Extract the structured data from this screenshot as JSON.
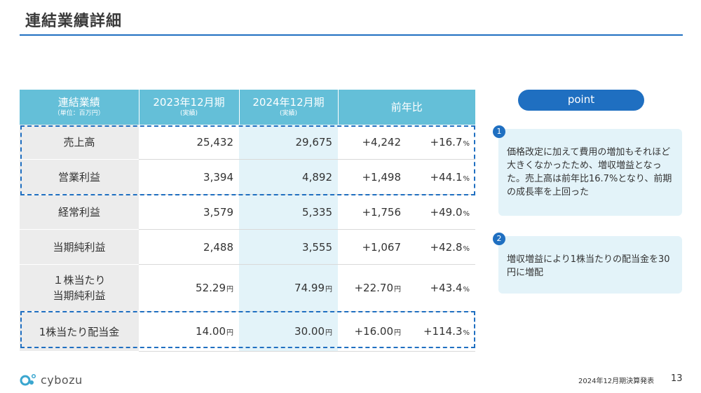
{
  "title": "連結業績詳細",
  "table": {
    "headers": [
      {
        "main": "連結業績",
        "sub": "（単位：百万円）"
      },
      {
        "main": "2023年12月期",
        "sub": "(実績)"
      },
      {
        "main": "2024年12月期",
        "sub": "(実績)"
      },
      {
        "main": "前年比",
        "sub": ""
      }
    ],
    "rows": [
      {
        "label": "売上高",
        "y2023": "25,432",
        "y2024": "29,675",
        "diff": "+4,242",
        "pct": "+16.7",
        "unit": ""
      },
      {
        "label": "営業利益",
        "y2023": "3,394",
        "y2024": "4,892",
        "diff": "+1,498",
        "pct": "+44.1",
        "unit": ""
      },
      {
        "label": "経常利益",
        "y2023": "3,579",
        "y2024": "5,335",
        "diff": "+1,756",
        "pct": "+49.0",
        "unit": ""
      },
      {
        "label": "当期純利益",
        "y2023": "2,488",
        "y2024": "3,555",
        "diff": "+1,067",
        "pct": "+42.8",
        "unit": ""
      },
      {
        "label_line1": "１株当たり",
        "label_line2": "当期純利益",
        "y2023": "52.29",
        "y2024": "74.99",
        "diff": "+22.70",
        "pct": "+43.4",
        "unit": "円"
      },
      {
        "label": "1株当たり配当金",
        "y2023": "14.00",
        "y2024": "30.00",
        "diff": "+16.00",
        "pct": "+114.3",
        "unit": "円"
      }
    ],
    "pct_suffix": "%"
  },
  "point": {
    "label": "point",
    "notes": [
      {
        "num": "1",
        "text": "価格改定に加えて費用の増加もそれほど大きくなかったため、増収増益となった。売上高は前年比16.7%となり、前期の成長率を上回った"
      },
      {
        "num": "2",
        "text": "増収増益により1株当たりの配当金を30円に増配"
      }
    ]
  },
  "footer": {
    "logo_text": "cybozu",
    "doc_title": "2024年12月期決算発表",
    "page": "13"
  },
  "colors": {
    "accent": "#1f6fc1",
    "header_bg": "#64bfd8",
    "highlight": "#e3f3f9",
    "label_bg": "#ececec"
  }
}
